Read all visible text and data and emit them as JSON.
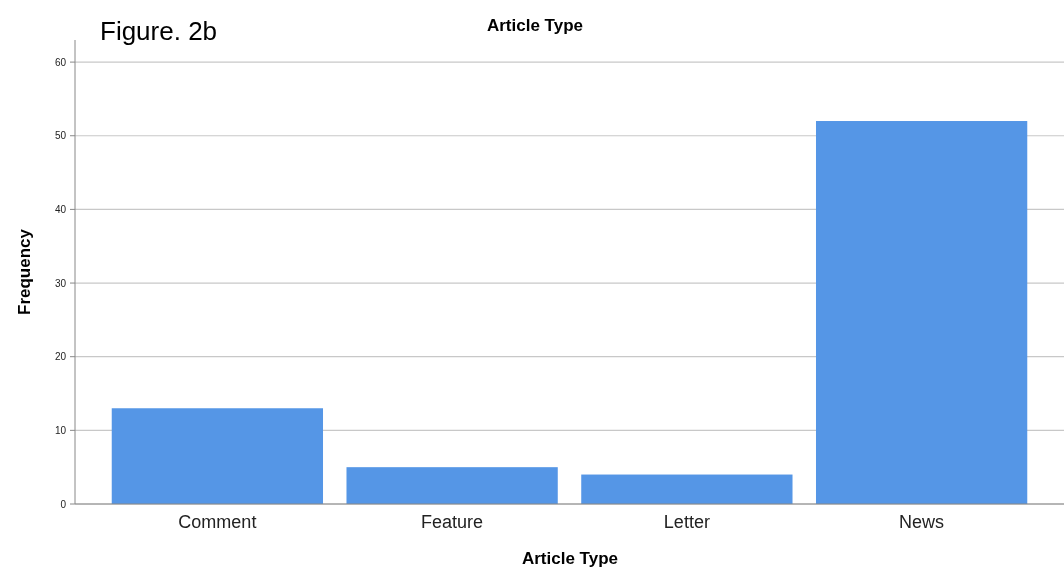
{
  "chart_data": {
    "type": "bar",
    "title": "Article Type",
    "xlabel": "Article Type",
    "ylabel": "Frequency",
    "categories": [
      "Comment",
      "Feature",
      "Letter",
      "News"
    ],
    "values": [
      13,
      5,
      4,
      52
    ],
    "color": "#5596e6",
    "ylim": [
      0,
      63
    ],
    "yticks": [
      0,
      10,
      20,
      30,
      40,
      50,
      60
    ],
    "grid": "y",
    "annotations": [
      "Figure. 2b"
    ]
  }
}
